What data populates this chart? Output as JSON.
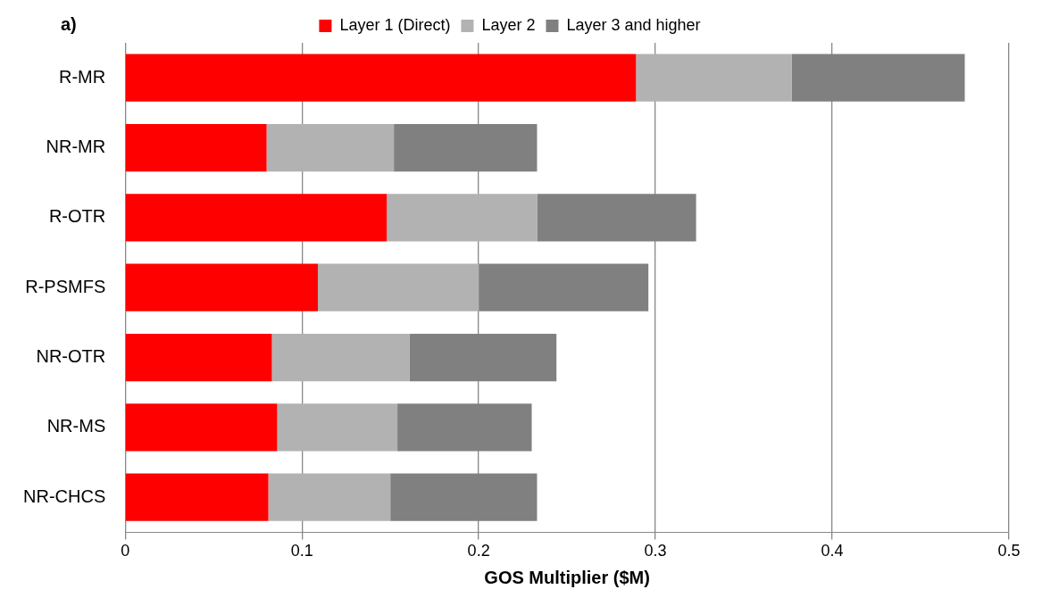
{
  "chart_data": {
    "type": "bar",
    "orientation": "horizontal",
    "stacked": true,
    "title": "a)",
    "xlabel": "GOS Multiplier ($M)",
    "categories": [
      "R-MR",
      "NR-MR",
      "R-OTR",
      "R-PSMFS",
      "NR-OTR",
      "NR-MS",
      "NR-CHCS"
    ],
    "series": [
      {
        "name": "Layer 1 (Direct)",
        "color": "#ff0000",
        "values": [
          0.289,
          0.08,
          0.148,
          0.109,
          0.083,
          0.086,
          0.081
        ]
      },
      {
        "name": "Layer 2",
        "color": "#b2b2b2",
        "values": [
          0.088,
          0.072,
          0.085,
          0.091,
          0.078,
          0.068,
          0.069
        ]
      },
      {
        "name": "Layer 3 and higher",
        "color": "#808080",
        "values": [
          0.098,
          0.081,
          0.09,
          0.096,
          0.083,
          0.076,
          0.083
        ]
      }
    ],
    "xlim": [
      0,
      0.5
    ],
    "xticks": [
      0,
      0.1,
      0.2,
      0.3,
      0.4,
      0.5
    ],
    "grid": "x",
    "legend": "top"
  }
}
